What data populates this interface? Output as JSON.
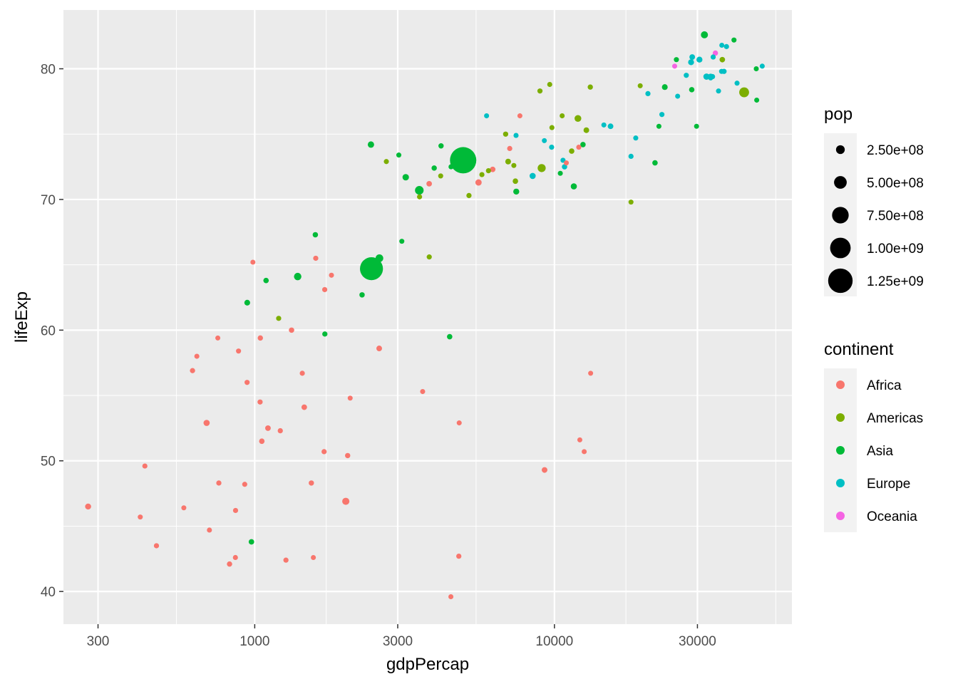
{
  "chart_data": {
    "type": "scatter",
    "title": "",
    "xlabel": "gdpPercap",
    "ylabel": "lifeExp",
    "x_scale": "log10",
    "xlim": [
      230,
      62000
    ],
    "ylim": [
      37.5,
      84.5
    ],
    "x_ticks": [
      300,
      1000,
      3000,
      10000,
      30000
    ],
    "x_tick_labels": [
      "300",
      "1000",
      "3000",
      "10000",
      "30000"
    ],
    "y_ticks": [
      40,
      50,
      60,
      70,
      80
    ],
    "y_tick_labels": [
      "40",
      "50",
      "60",
      "70",
      "80"
    ],
    "grid": true,
    "size_legend": {
      "title": "pop",
      "values": [
        250000000,
        500000000,
        750000000,
        1000000000,
        1250000000
      ],
      "labels": [
        "2.50e+08",
        "5.00e+08",
        "7.50e+08",
        "1.00e+09",
        "1.25e+09"
      ]
    },
    "color_legend": {
      "title": "continent",
      "placement": "right"
    },
    "series": [
      {
        "name": "Africa",
        "color": "#F8766D",
        "points": [
          [
            6223,
            72.3,
            33000000
          ],
          [
            4797,
            42.7,
            12400000
          ],
          [
            1441,
            56.7,
            8000000
          ],
          [
            12570,
            50.7,
            1600000
          ],
          [
            1217,
            52.3,
            14300000
          ],
          [
            430,
            49.6,
            8400000
          ],
          [
            2042,
            50.4,
            17700000
          ],
          [
            706,
            44.7,
            4400000
          ],
          [
            1704,
            50.7,
            10200000
          ],
          [
            986,
            65.2,
            700000
          ],
          [
            278,
            46.5,
            64600000
          ],
          [
            3633,
            55.3,
            3800000
          ],
          [
            1545,
            48.3,
            18000000
          ],
          [
            2082,
            54.8,
            500000
          ],
          [
            5581,
            71.3,
            80300000
          ],
          [
            12154,
            51.6,
            550000
          ],
          [
            641,
            58.0,
            4900000
          ],
          [
            691,
            52.9,
            76500000
          ],
          [
            13206,
            56.7,
            1450000
          ],
          [
            753,
            59.4,
            1700000
          ],
          [
            1327,
            60.0,
            22900000
          ],
          [
            943,
            56.0,
            9900000
          ],
          [
            580,
            46.4,
            1500000
          ],
          [
            1463,
            54.1,
            35600000
          ],
          [
            1569,
            42.6,
            2000000
          ],
          [
            415,
            45.7,
            3200000
          ],
          [
            12057,
            74.0,
            6000000
          ],
          [
            1044,
            59.4,
            19200000
          ],
          [
            759,
            48.3,
            13300000
          ],
          [
            1042,
            54.5,
            12000000
          ],
          [
            1803,
            64.2,
            3300000
          ],
          [
            10957,
            72.8,
            1250000
          ],
          [
            3820,
            71.2,
            33800000
          ],
          [
            824,
            42.1,
            19900000
          ],
          [
            4811,
            52.9,
            2100000
          ],
          [
            620,
            56.9,
            12900000
          ],
          [
            2013,
            46.9,
            135000000
          ],
          [
            7670,
            76.4,
            800000
          ],
          [
            863,
            46.2,
            8900000
          ],
          [
            1598,
            65.5,
            12000000
          ],
          [
            1712,
            63.1,
            10200000
          ],
          [
            862,
            42.6,
            6100000
          ],
          [
            926,
            48.2,
            9100000
          ],
          [
            9270,
            49.3,
            44000000
          ],
          [
            2602,
            58.6,
            42300000
          ],
          [
            4513,
            39.6,
            1100000
          ],
          [
            1107,
            52.5,
            38100000
          ],
          [
            883,
            58.4,
            5700000
          ],
          [
            7093,
            73.9,
            10300000
          ],
          [
            1056,
            51.5,
            29200000
          ],
          [
            1271,
            42.4,
            11700000
          ],
          [
            470,
            43.5,
            12300000
          ]
        ]
      },
      {
        "name": "Americas",
        "color": "#7CAE00",
        "points": [
          [
            12779,
            75.3,
            40300000
          ],
          [
            3822,
            65.6,
            9100000
          ],
          [
            9066,
            72.4,
            190000000
          ],
          [
            36319,
            80.7,
            33400000
          ],
          [
            13172,
            78.6,
            16300000
          ],
          [
            7007,
            72.9,
            44200000
          ],
          [
            9645,
            78.8,
            4100000
          ],
          [
            8948,
            78.3,
            11400000
          ],
          [
            6025,
            72.2,
            9300000
          ],
          [
            6873,
            75.0,
            13800000
          ],
          [
            5728,
            71.9,
            6900000
          ],
          [
            5186,
            70.3,
            12600000
          ],
          [
            1202,
            60.9,
            8500000
          ],
          [
            3548,
            70.2,
            7500000
          ],
          [
            7321,
            72.6,
            2800000
          ],
          [
            11978,
            76.2,
            108700000
          ],
          [
            2749,
            72.9,
            5700000
          ],
          [
            9809,
            75.5,
            3200000
          ],
          [
            4173,
            71.8,
            6700000
          ],
          [
            7409,
            71.4,
            28700000
          ],
          [
            19329,
            78.7,
            3900000
          ],
          [
            18009,
            69.8,
            1100000
          ],
          [
            42952,
            78.2,
            301100000
          ],
          [
            10611,
            76.4,
            3400000
          ],
          [
            11416,
            73.7,
            26100000
          ]
        ]
      },
      {
        "name": "Asia",
        "color": "#00BA38",
        "points": [
          [
            975,
            43.8,
            31900000
          ],
          [
            29796,
            75.6,
            700000
          ],
          [
            1391,
            64.1,
            150400000
          ],
          [
            1714,
            59.7,
            14100000
          ],
          [
            4959,
            73.0,
            1318700000
          ],
          [
            39725,
            82.2,
            6900000
          ],
          [
            2452,
            64.7,
            1110400000
          ],
          [
            3541,
            70.7,
            223500000
          ],
          [
            11606,
            71.0,
            69500000
          ],
          [
            4471,
            59.5,
            27500000
          ],
          [
            25523,
            80.7,
            6400000
          ],
          [
            31656,
            82.6,
            127500000
          ],
          [
            4519,
            72.5,
            6100000
          ],
          [
            1593,
            67.3,
            23300000
          ],
          [
            23348,
            78.6,
            49000000
          ],
          [
            47307,
            77.6,
            2500000
          ],
          [
            10461,
            72.0,
            3900000
          ],
          [
            12452,
            74.2,
            24800000
          ],
          [
            3096,
            66.8,
            2900000
          ],
          [
            944,
            62.1,
            47800000
          ],
          [
            1091,
            63.8,
            28900000
          ],
          [
            22316,
            75.6,
            3200000
          ],
          [
            2606,
            65.5,
            169300000
          ],
          [
            3190,
            71.7,
            91100000
          ],
          [
            21655,
            72.8,
            27600000
          ],
          [
            47143,
            80.0,
            4600000
          ],
          [
            3970,
            72.4,
            20400000
          ],
          [
            4185,
            74.1,
            19300000
          ],
          [
            28718,
            78.4,
            23200000
          ],
          [
            7458,
            70.6,
            65100000
          ],
          [
            2442,
            74.2,
            85300000
          ],
          [
            3025,
            73.4,
            4000000
          ],
          [
            2281,
            62.7,
            22200000
          ]
        ]
      },
      {
        "name": "Europe",
        "color": "#00BFC4",
        "points": [
          [
            5937,
            76.4,
            3600000
          ],
          [
            36126,
            79.8,
            8200000
          ],
          [
            33693,
            79.4,
            10400000
          ],
          [
            7446,
            74.9,
            4600000
          ],
          [
            10681,
            73.0,
            7300000
          ],
          [
            14619,
            75.7,
            4500000
          ],
          [
            22833,
            76.5,
            10200000
          ],
          [
            35278,
            78.3,
            5500000
          ],
          [
            33207,
            79.3,
            5200000
          ],
          [
            30470,
            80.7,
            61100000
          ],
          [
            32170,
            79.4,
            82400000
          ],
          [
            27538,
            79.5,
            10700000
          ],
          [
            18009,
            73.3,
            10000000
          ],
          [
            36181,
            81.8,
            300000
          ],
          [
            40676,
            78.9,
            4100000
          ],
          [
            28570,
            80.5,
            58100000
          ],
          [
            9254,
            74.5,
            700000
          ],
          [
            36798,
            79.8,
            16600000
          ],
          [
            49357,
            80.2,
            4600000
          ],
          [
            15390,
            75.6,
            38500000
          ],
          [
            20510,
            78.1,
            10600000
          ],
          [
            10808,
            72.5,
            22300000
          ],
          [
            9787,
            74.0,
            10200000
          ],
          [
            18678,
            74.7,
            5400000
          ],
          [
            25768,
            77.9,
            2000000
          ],
          [
            28821,
            80.9,
            40400000
          ],
          [
            33860,
            80.9,
            9000000
          ],
          [
            37506,
            81.7,
            7600000
          ],
          [
            8458,
            71.8,
            71200000
          ],
          [
            33203,
            79.4,
            60800000
          ]
        ]
      },
      {
        "name": "Oceania",
        "color": "#F564E3",
        "points": [
          [
            34435,
            81.2,
            20400000
          ],
          [
            25185,
            80.2,
            4100000
          ]
        ]
      }
    ]
  }
}
